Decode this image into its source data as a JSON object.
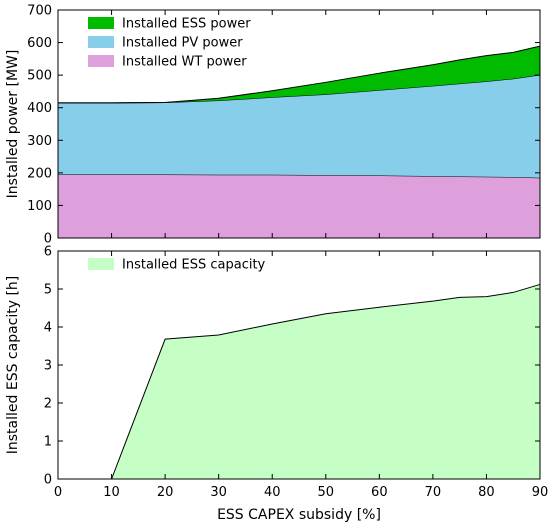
{
  "colors": {
    "ess_power": "#00bb00",
    "pv_power": "#87ceeb",
    "wt_power": "#dda0dd",
    "ess_capacity": "#c5ffc5"
  },
  "chart_data": [
    {
      "type": "area",
      "stacked": true,
      "x": [
        0,
        10,
        20,
        30,
        40,
        50,
        60,
        70,
        75,
        80,
        85,
        90
      ],
      "series": [
        {
          "name": "Installed WT power",
          "color_key": "wt_power",
          "values": [
            195,
            195,
            195,
            194,
            194,
            193,
            192,
            190,
            189,
            188,
            187,
            185
          ]
        },
        {
          "name": "Installed PV power",
          "color_key": "pv_power",
          "values": [
            220,
            220,
            221,
            228,
            238,
            248,
            262,
            277,
            285,
            293,
            302,
            316
          ]
        },
        {
          "name": "Installed ESS power",
          "color_key": "ess_power",
          "values": [
            0,
            0,
            0,
            7,
            20,
            37,
            52,
            65,
            73,
            79,
            81,
            88
          ]
        }
      ],
      "legend_order": [
        "Installed ESS power",
        "Installed PV power",
        "Installed WT power"
      ],
      "xlabel": "",
      "ylabel": "Installed power [MW]",
      "xlim": [
        0,
        90
      ],
      "ylim": [
        0,
        700
      ],
      "yticks": [
        0,
        100,
        200,
        300,
        400,
        500,
        600,
        700
      ],
      "xticks": [
        0,
        10,
        20,
        30,
        40,
        50,
        60,
        70,
        80,
        90
      ],
      "show_x_tick_labels": false,
      "legend_position": "top-left",
      "grid": false
    },
    {
      "type": "area",
      "x": [
        0,
        10,
        20,
        30,
        40,
        50,
        60,
        70,
        75,
        80,
        85,
        90
      ],
      "series": [
        {
          "name": "Installed ESS capacity",
          "color_key": "ess_capacity",
          "values": [
            0,
            0,
            3.68,
            3.79,
            4.08,
            4.35,
            4.52,
            4.68,
            4.78,
            4.8,
            4.91,
            5.12
          ]
        }
      ],
      "legend_order": [
        "Installed ESS capacity"
      ],
      "xlabel": "ESS CAPEX subsidy [%]",
      "ylabel": "Installed ESS capacity [h]",
      "xlim": [
        0,
        90
      ],
      "ylim": [
        0,
        6
      ],
      "yticks": [
        0,
        1,
        2,
        3,
        4,
        5,
        6
      ],
      "xticks": [
        0,
        10,
        20,
        30,
        40,
        50,
        60,
        70,
        80,
        90
      ],
      "show_x_tick_labels": true,
      "legend_position": "top-left",
      "grid": false
    }
  ]
}
